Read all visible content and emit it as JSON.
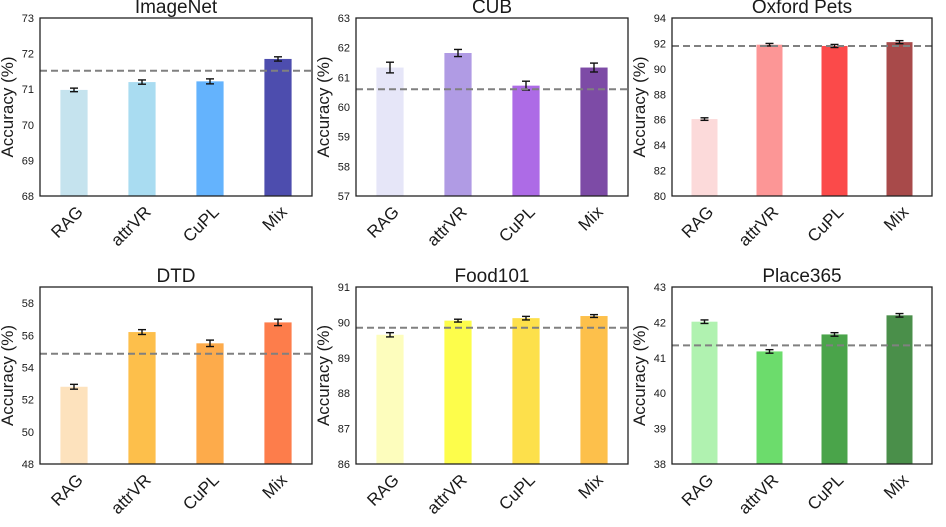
{
  "chart_data": [
    {
      "type": "bar",
      "title": "ImageNet",
      "ylabel": "Accuracy (%)",
      "categories": [
        "RAG",
        "attrVR",
        "CuPL",
        "Mix"
      ],
      "values": [
        70.98,
        71.2,
        71.22,
        71.85
      ],
      "errors": [
        0.05,
        0.06,
        0.07,
        0.06
      ],
      "colors": [
        "#c5e3ee",
        "#a9dcf1",
        "#64b3fd",
        "#4d4dae"
      ],
      "ylim": [
        68,
        73
      ],
      "yticks": [
        "68",
        "69",
        "70",
        "71",
        "72",
        "73"
      ],
      "baseline": 71.52
    },
    {
      "type": "bar",
      "title": "CUB",
      "ylabel": "Accuracy (%)",
      "categories": [
        "RAG",
        "attrVR",
        "CuPL",
        "Mix"
      ],
      "values": [
        61.33,
        61.82,
        60.72,
        61.33
      ],
      "errors": [
        0.18,
        0.12,
        0.15,
        0.15
      ],
      "colors": [
        "#e6e6f8",
        "#b09be4",
        "#ad6be6",
        "#7d4ba6"
      ],
      "ylim": [
        57,
        63
      ],
      "yticks": [
        "57",
        "58",
        "59",
        "60",
        "61",
        "62",
        "63"
      ],
      "baseline": 60.6
    },
    {
      "type": "bar",
      "title": "Oxford Pets",
      "ylabel": "Accuracy (%)",
      "categories": [
        "RAG",
        "attrVR",
        "CuPL",
        "Mix"
      ],
      "values": [
        86.05,
        91.9,
        91.8,
        92.1
      ],
      "errors": [
        0.1,
        0.1,
        0.12,
        0.12
      ],
      "colors": [
        "#fcdada",
        "#fc9696",
        "#fb4a4a",
        "#a84a4a"
      ],
      "ylim": [
        80,
        94
      ],
      "yticks": [
        "80",
        "82",
        "84",
        "86",
        "88",
        "90",
        "92",
        "94"
      ],
      "baseline": 91.8
    },
    {
      "type": "bar",
      "title": "DTD",
      "ylabel": "Accuracy (%)",
      "categories": [
        "RAG",
        "attrVR",
        "CuPL",
        "Mix"
      ],
      "values": [
        52.8,
        56.2,
        55.5,
        56.8
      ],
      "errors": [
        0.15,
        0.15,
        0.2,
        0.2
      ],
      "colors": [
        "#fde2bd",
        "#fdbf4b",
        "#fdab4b",
        "#fd7d4b"
      ],
      "ylim": [
        48,
        59
      ],
      "yticks": [
        "48",
        "50",
        "52",
        "54",
        "56",
        "58"
      ],
      "baseline": 54.85
    },
    {
      "type": "bar",
      "title": "Food101",
      "ylabel": "Accuracy (%)",
      "categories": [
        "RAG",
        "attrVR",
        "CuPL",
        "Mix"
      ],
      "values": [
        89.65,
        90.05,
        90.12,
        90.18
      ],
      "errors": [
        0.06,
        0.04,
        0.05,
        0.04
      ],
      "colors": [
        "#fdfdbd",
        "#fdfd4b",
        "#fde04b",
        "#fdc04b"
      ],
      "ylim": [
        86,
        91
      ],
      "yticks": [
        "86",
        "87",
        "88",
        "89",
        "90",
        "91"
      ],
      "baseline": 89.85
    },
    {
      "type": "bar",
      "title": "Place365",
      "ylabel": "Accuracy (%)",
      "categories": [
        "RAG",
        "attrVR",
        "CuPL",
        "Mix"
      ],
      "values": [
        42.02,
        41.18,
        41.66,
        42.2
      ],
      "errors": [
        0.05,
        0.05,
        0.05,
        0.05
      ],
      "colors": [
        "#b0f2b0",
        "#6cdc6c",
        "#4aa44a",
        "#4a8f4a"
      ],
      "ylim": [
        38,
        43
      ],
      "yticks": [
        "38",
        "39",
        "40",
        "41",
        "42",
        "43"
      ],
      "baseline": 41.35
    }
  ]
}
